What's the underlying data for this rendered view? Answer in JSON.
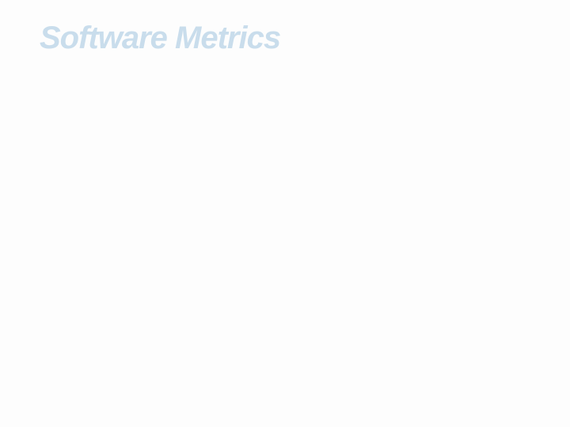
{
  "slide": {
    "title": "Software Metrics",
    "title_color": "#c9ddec",
    "title_fontsize": 40,
    "title_fontweight": 800,
    "title_fontstyle": "italic",
    "background_color": "#fdfdfd"
  }
}
